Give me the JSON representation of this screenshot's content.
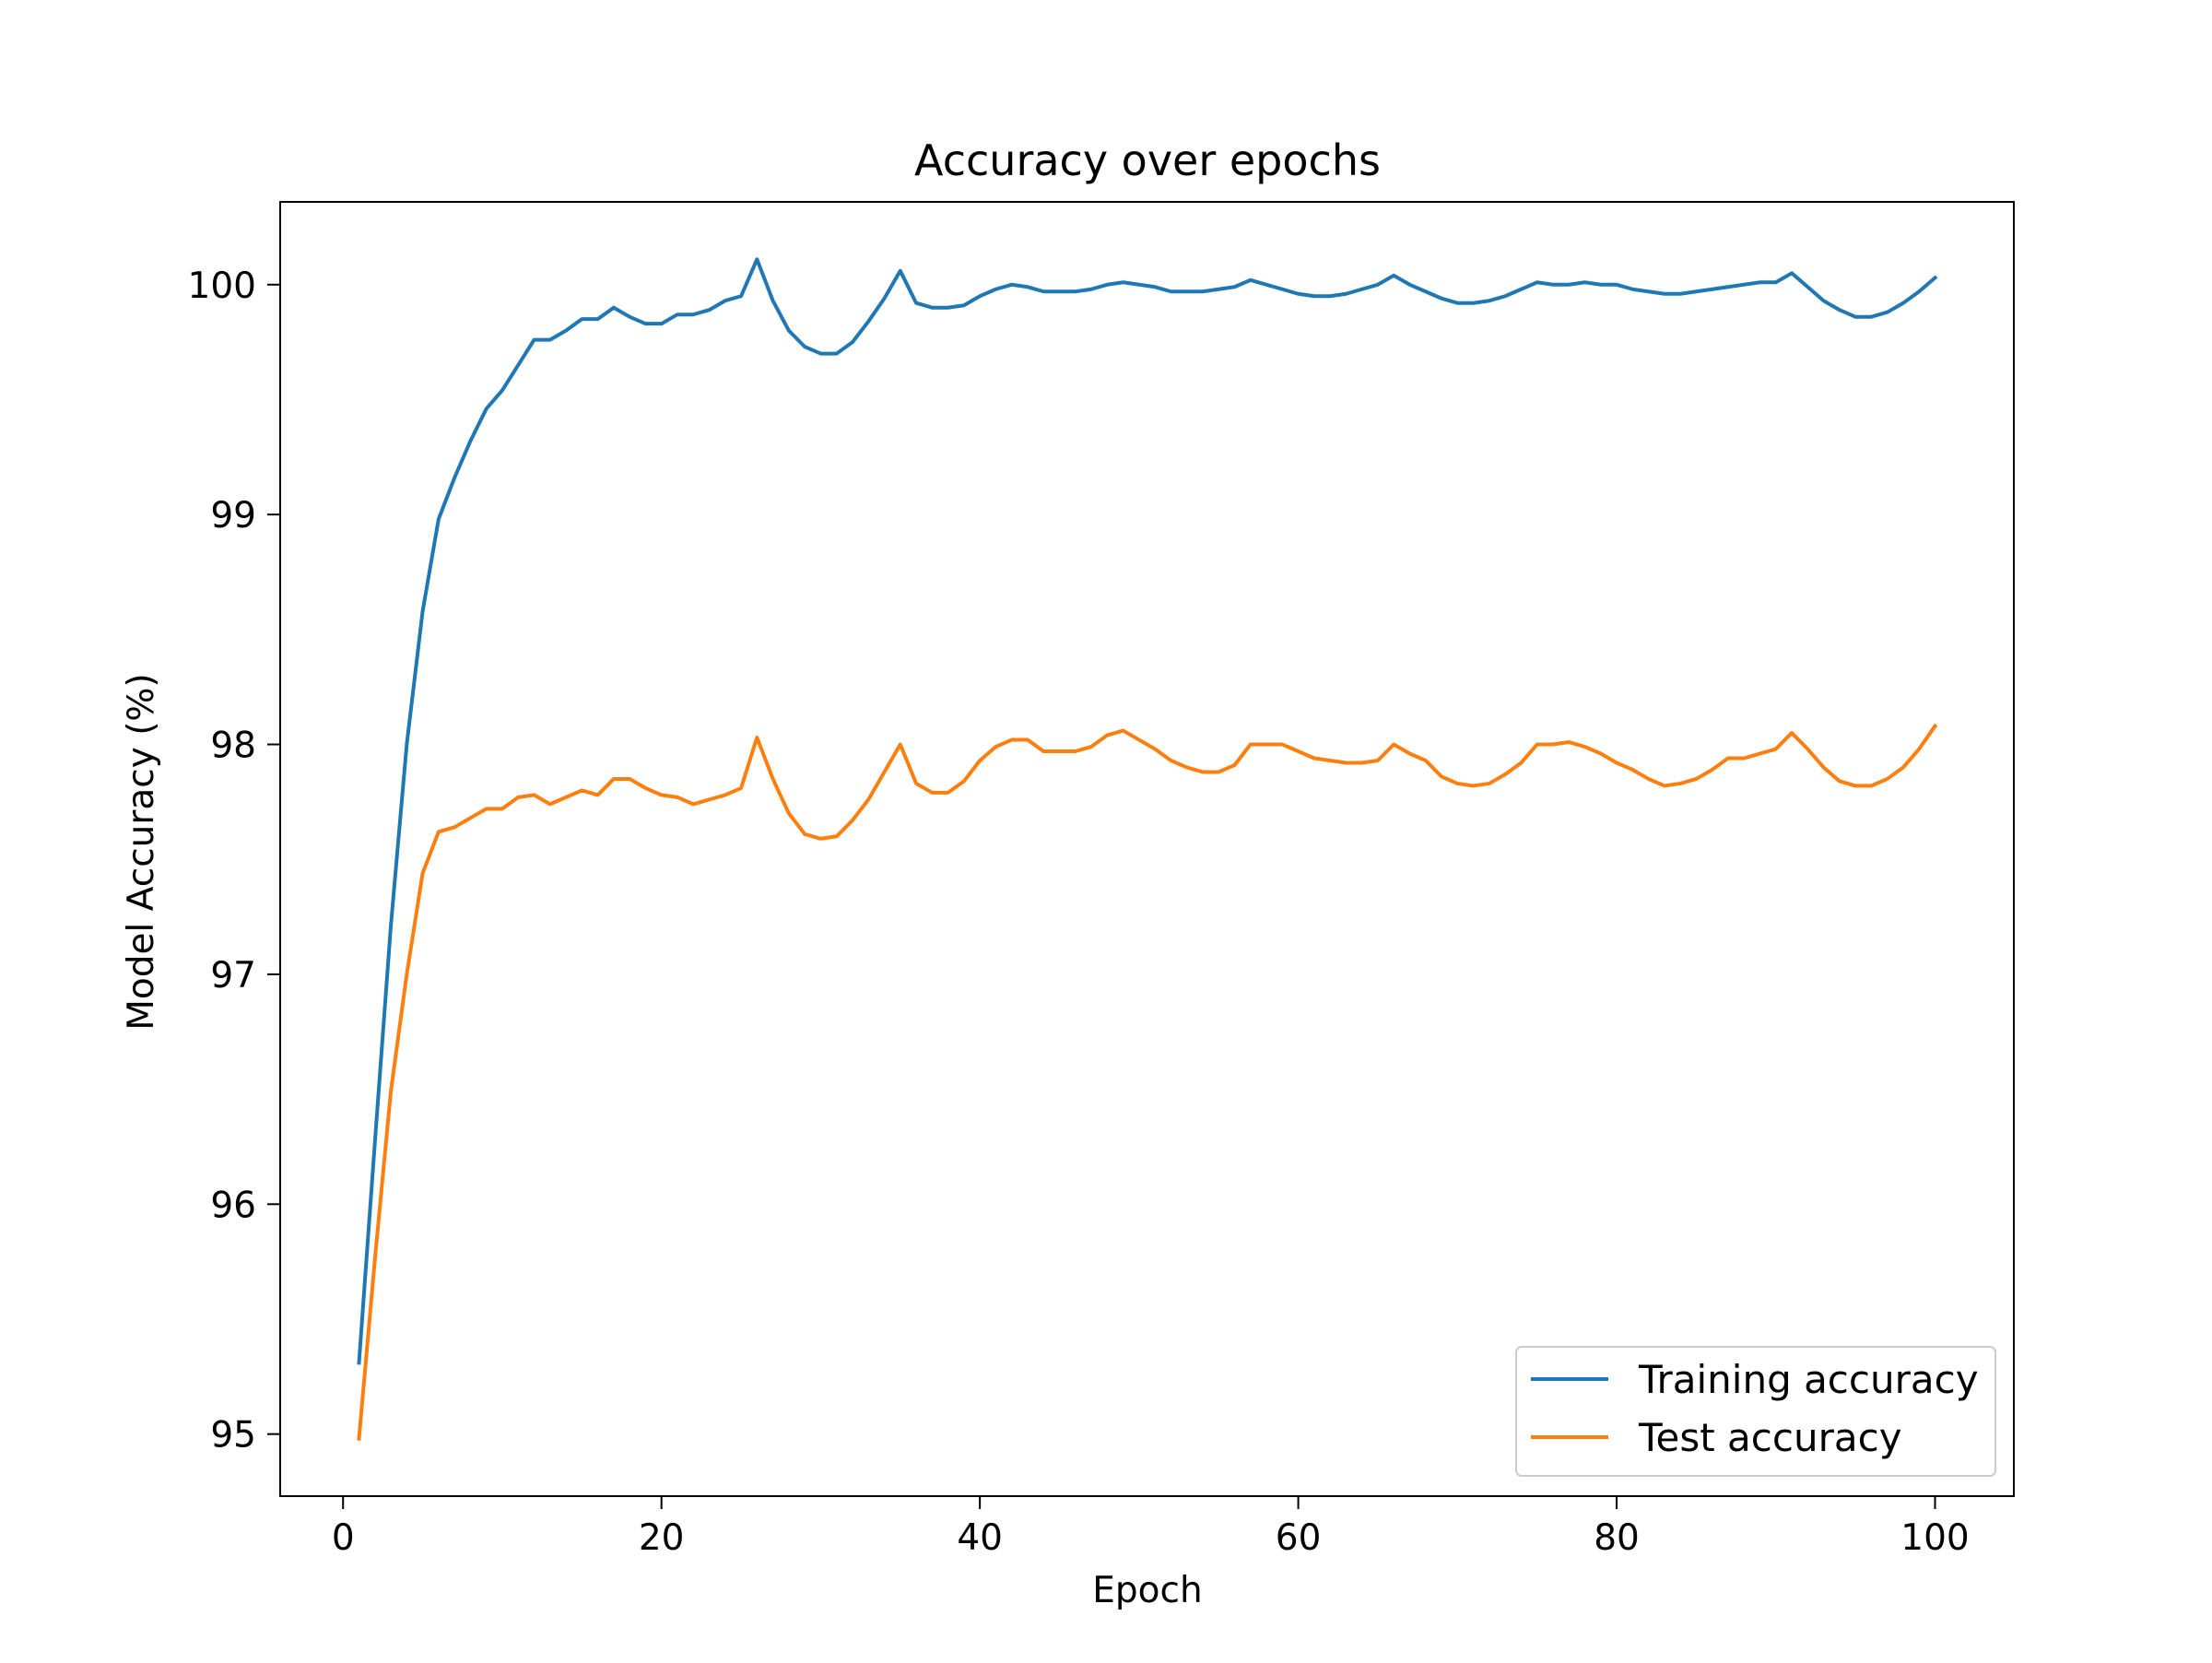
{
  "chart_data": {
    "type": "line",
    "title": "Accuracy over epochs",
    "xlabel": "Epoch",
    "ylabel": "Model Accuracy (%)",
    "xlim": [
      -3.95,
      104.95
    ],
    "ylim": [
      94.73,
      100.36
    ],
    "xticks": [
      0,
      20,
      40,
      60,
      80,
      100
    ],
    "yticks": [
      95,
      96,
      97,
      98,
      99,
      100
    ],
    "grid": false,
    "legend_position": "lower right",
    "series": [
      {
        "name": "Training accuracy",
        "color": "#1f77b4",
        "x": [
          1,
          2,
          3,
          4,
          5,
          6,
          7,
          8,
          9,
          10,
          11,
          12,
          13,
          14,
          15,
          16,
          17,
          18,
          19,
          20,
          21,
          22,
          23,
          24,
          25,
          26,
          27,
          28,
          29,
          30,
          31,
          32,
          33,
          34,
          35,
          36,
          37,
          38,
          39,
          40,
          41,
          42,
          43,
          44,
          45,
          46,
          47,
          48,
          49,
          50,
          51,
          52,
          53,
          54,
          55,
          56,
          57,
          58,
          59,
          60,
          61,
          62,
          63,
          64,
          65,
          66,
          67,
          68,
          69,
          70,
          71,
          72,
          73,
          74,
          75,
          76,
          77,
          78,
          79,
          80,
          81,
          82,
          83,
          84,
          85,
          86,
          87,
          88,
          89,
          90,
          91,
          92,
          93,
          94,
          95,
          96,
          97,
          98,
          99,
          100
        ],
        "values": [
          95.31,
          96.27,
          97.21,
          98.0,
          98.58,
          98.98,
          99.16,
          99.32,
          99.46,
          99.54,
          99.65,
          99.76,
          99.76,
          99.8,
          99.85,
          99.85,
          99.9,
          99.86,
          99.83,
          99.83,
          99.87,
          99.87,
          99.89,
          99.93,
          99.95,
          100.11,
          99.93,
          99.8,
          99.73,
          99.7,
          99.7,
          99.75,
          99.84,
          99.94,
          100.06,
          99.92,
          99.9,
          99.9,
          99.91,
          99.95,
          99.98,
          100.0,
          99.99,
          99.97,
          99.97,
          99.97,
          99.98,
          100.0,
          100.01,
          100.0,
          99.99,
          99.97,
          99.97,
          99.97,
          99.98,
          99.99,
          100.02,
          100.0,
          99.98,
          99.96,
          99.95,
          99.95,
          99.96,
          99.98,
          100.0,
          100.04,
          100.0,
          99.97,
          99.94,
          99.92,
          99.92,
          99.93,
          99.95,
          99.98,
          100.01,
          100.0,
          100.0,
          100.01,
          100.0,
          100.0,
          99.98,
          99.97,
          99.96,
          99.96,
          99.97,
          99.98,
          99.99,
          100.0,
          100.01,
          100.01,
          100.05,
          99.99,
          99.93,
          99.89,
          99.86,
          99.86,
          99.88,
          99.92,
          99.97,
          100.03
        ]
      },
      {
        "name": "Test accuracy",
        "color": "#ff7f0e",
        "x": [
          1,
          2,
          3,
          4,
          5,
          6,
          7,
          8,
          9,
          10,
          11,
          12,
          13,
          14,
          15,
          16,
          17,
          18,
          19,
          20,
          21,
          22,
          23,
          24,
          25,
          26,
          27,
          28,
          29,
          30,
          31,
          32,
          33,
          34,
          35,
          36,
          37,
          38,
          39,
          40,
          41,
          42,
          43,
          44,
          45,
          46,
          47,
          48,
          49,
          50,
          51,
          52,
          53,
          54,
          55,
          56,
          57,
          58,
          59,
          60,
          61,
          62,
          63,
          64,
          65,
          66,
          67,
          68,
          69,
          70,
          71,
          72,
          73,
          74,
          75,
          76,
          77,
          78,
          79,
          80,
          81,
          82,
          83,
          84,
          85,
          86,
          87,
          88,
          89,
          90,
          91,
          92,
          93,
          94,
          95,
          96,
          97,
          98,
          99,
          100
        ],
        "values": [
          94.98,
          95.76,
          96.49,
          97.0,
          97.44,
          97.62,
          97.64,
          97.68,
          97.72,
          97.72,
          97.77,
          97.78,
          97.74,
          97.77,
          97.8,
          97.78,
          97.85,
          97.85,
          97.81,
          97.78,
          97.77,
          97.74,
          97.76,
          97.78,
          97.81,
          98.03,
          97.85,
          97.7,
          97.61,
          97.59,
          97.6,
          97.67,
          97.76,
          97.88,
          98.0,
          97.83,
          97.79,
          97.79,
          97.84,
          97.93,
          97.99,
          98.02,
          98.02,
          97.97,
          97.97,
          97.97,
          97.99,
          98.04,
          98.06,
          98.02,
          97.98,
          97.93,
          97.9,
          97.88,
          97.88,
          97.91,
          98.0,
          98.0,
          98.0,
          97.97,
          97.94,
          97.93,
          97.92,
          97.92,
          97.93,
          98.0,
          97.96,
          97.93,
          97.86,
          97.83,
          97.82,
          97.83,
          97.87,
          97.92,
          98.0,
          98.0,
          98.01,
          97.99,
          97.96,
          97.92,
          97.89,
          97.85,
          97.82,
          97.83,
          97.85,
          97.89,
          97.94,
          97.94,
          97.96,
          97.98,
          98.05,
          97.98,
          97.9,
          97.84,
          97.82,
          97.82,
          97.85,
          97.9,
          97.98,
          98.08
        ]
      }
    ]
  }
}
